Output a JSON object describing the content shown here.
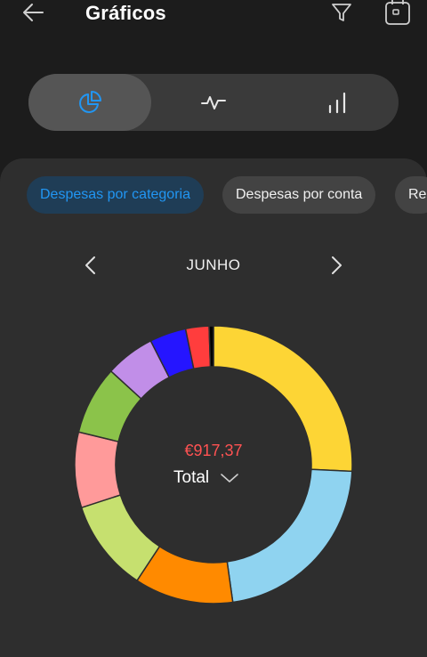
{
  "header": {
    "title": "Gráficos"
  },
  "segment": {
    "active": 0,
    "icons": [
      "pie-chart-icon",
      "line-chart-icon",
      "bar-chart-icon"
    ],
    "accent": "#2196f3"
  },
  "chips": [
    {
      "label": "Despesas por categoria",
      "active": true
    },
    {
      "label": "Despesas por conta",
      "active": false
    },
    {
      "label": "Re",
      "active": false
    }
  ],
  "month": {
    "label": "JUNHO"
  },
  "summary": {
    "amount": "€917,37",
    "total_label": "Total",
    "amount_color": "#ff5252"
  },
  "chart_data": {
    "type": "pie",
    "slices": [
      {
        "value": 25.5,
        "color": "#fdd535"
      },
      {
        "value": 21.8,
        "color": "#8fd3f0"
      },
      {
        "value": 11.4,
        "color": "#ff8a00"
      },
      {
        "value": 10.6,
        "color": "#c6e06f"
      },
      {
        "value": 8.7,
        "color": "#ff9a9a"
      },
      {
        "value": 7.9,
        "color": "#8bc34a"
      },
      {
        "value": 5.7,
        "color": "#c18ee8"
      },
      {
        "value": 4.2,
        "color": "#2515ff"
      },
      {
        "value": 2.7,
        "color": "#ff3d3d"
      },
      {
        "value": 0.5,
        "color": "#000000"
      }
    ]
  }
}
